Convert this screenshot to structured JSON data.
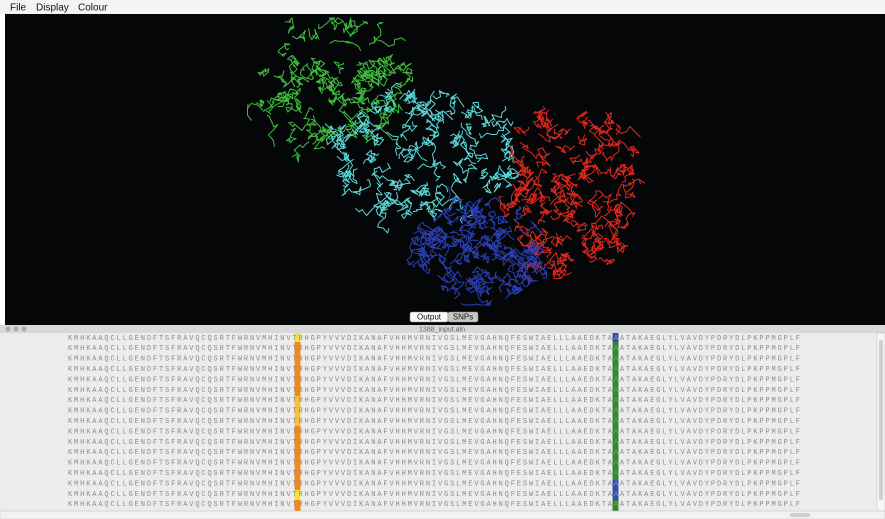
{
  "menu": [
    "File",
    "Display",
    "Colour"
  ],
  "tabs": [
    "Output",
    "SNPs"
  ],
  "alignment": {
    "title": "1388_input.aln",
    "rows": [
      "KMHKAAQCLLGENDFTSFRAVQCQSRTFWRNVMHINVTRHGPYVVVDIKANAFVHHMVRNIVGSLMEVGAHNQFESWIAELLLAAEDKTAAATAKAEGLYLVAVDYPDRYDLPKPPMGPLF",
      "KMHKAAQCLLGENDFTSFRAVQCQSRTFWRNVMHINVTRHGPYVVVDIKANAFVHHMVRNIVGSLMEVGAHNQFESWIAELLLAAEDKTAAATAKAEGLYLVAVDYPDRYDLPKPPMGPLF",
      "KMHKAAQCLLGENDFTSFRAVQCQSRTFWRNVMHINVTRHGPYVVVDIKANAFVHHMVRNIVGSLMEVGAHNQFESWIAELLLAAEDKTAAATAKAEGLYLVAVDYPDRYDLPKPPMGPLF",
      "KMHKAAQCLLGENDFTSFRAVQCQSRTFWRNVMHINVTRHGPYVVVDIKANAFVHHMVRNIVGSLMEVGAHNQFESWIAELLLAAEDKTAAATAKAEGLYLVAVDYPDRYDLPKPPMGPLF",
      "KMHKAAQCLLGENDFTSFRAVQCQSRTFWRNVMHINVTRHGPYVVVDIKANAFVHHMVRNIVGSLMEVGAHNQFESWIAELLLAAEDKTAAATAKAEGLYLVAVDYPDRYDLPKPPMGPLF",
      "KMHKAAQCLLGENDFTSFRAVQCQSRTFWRNVMHINVTRHGPYVVVDIKANAFVHHMVRNIVGSLMEVGAHNQFESWIAELLLAAEDKTAAATAKAEGLYLVAVDYPDRYDLPKPPMGPLF",
      "KMHKAAQCLLGENDFTSFRAVQCQSRTFWRNVMHINVTRHGPYVVVDIKANAFVHHMVRNIVGSLMEVGAHNQFESWIAELLLAAEDKTAAATAKAEGLYLVAVDYPDRYDLPKPPMGPLF",
      "KMHKAAQCLLGENDFTSFRAVQCQSRTFWRNVMHINVTRHGPYVVVDIKANAFVHHMVRNIVGSLMEVGAHNQFESWIAELLLAAEDKTAAATAKAEGLYLVAVDYPDRYDLPKPPMGPLF",
      "KMHKAAQCLLGENDFTSFRAVQCQSRTFWRNVMHINVTRHGPYVVVDIKANAFVHHMVRNIVGSLMEVGAHNQFESWIAELLLAAEDKTAAATAKAEGLYLVAVDYPDRYDLPKPPMGPLF",
      "KMHKAAQCLLGENDFTSFRAVQCQSRTFWRNVMHINVTRHGPYVVVDIKANAFVHHMVRNIVGSLMEVGAHNQFESWIAELLLAAEDKTAAATAKAEGLYLVAVDYPDRYDLPKPPMGPLF",
      "KMHKAAQCLLGENDFTSFRAVQCQSRTFWRNVMHINVTRHGPYVVVDIKANAFVHHMVRNIVGSLMEVGAHNQFESWIAELLLAAEDKTAAATAKAEGLYLVAVDYPDRYDLPKPPMGPLF",
      "KMHKAAQCLLGENDFTSFRAVQCQSRTFWRNVMHINVTRHGPYVVVDIKANAFVHHMVRNIVGSLMEVGAHNQFESWIAELLLAAEDKTAAATAKAEGLYLVAVDYPDRYDLPKPPMGPLF",
      "KMHKAAQCLLGENDFTSFRAVQCQSRTFWRNVMHINVTRHGPYVVVDIKANAFVHHMVRNIVGSLMEVGAHNQFESWIAELLLAAEDKTAAATAKAEGLYLVAVDYPDRYDLPKPPMGPLF",
      "KMHKAAQCLLGENDFTSFRAVQCQSRTFWRNVMHINVTRHGPYVVVDIKANAFVHHMVRNIVGSLMEVGAHNQFESWIAELLLAAEDKTAAATAKAEGLYLVAVDYPDRYDLPKPPMGPLF",
      "KMHKAAQCLLGENDFTSFRAVQCQSRTFWRNVMHINVTRHGPYVVVDIKANAFVHHMVRNIVGSLMEVGAHNQFESWIAELLLAAEDKTAAATAKAEGLYLVAVDYPDRYDLPKPPMGPLF",
      "KMHKAAQCLLGENDFTSFRAVQCQSRTFWRNVMHINVTRHGPYVVVDIKANAFVHHMVRNIVGSLMEVGAHNQFESWIAELLLAAEDKTAAATAKAEGLYLVAVDYPDRYDLPKPPMGPLF",
      "KMHKAAQCLLGENDFTSFRAVQCQSRTFWRNVMHINVTRHGPYVVVDIKANAFVHHMVRNIVGSLMEVGAHNQFESWIAELLLAAEDKTAAATAKAEGLYLVAVDYPDRYDLPKPPMGPLF"
    ]
  }
}
